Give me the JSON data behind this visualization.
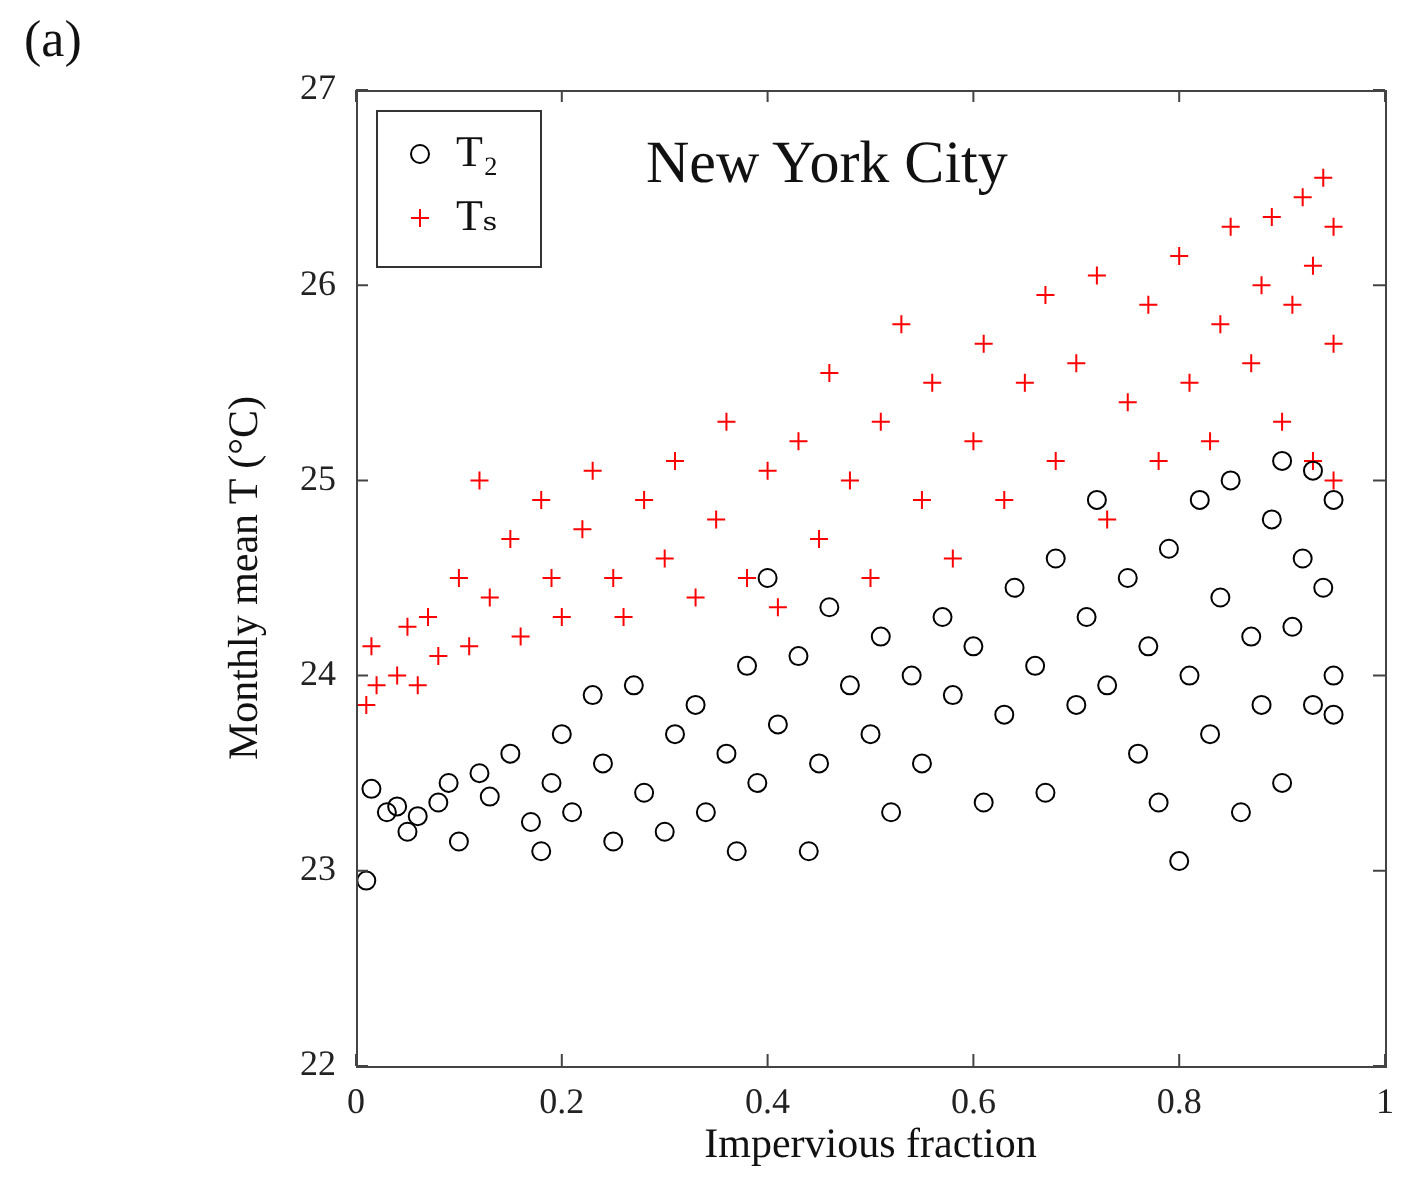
{
  "chart_data": {
    "type": "scatter",
    "title": "New York City",
    "xlabel": "Impervious fraction",
    "ylabel": "Monthly mean T (°C)",
    "annotations": [
      "(a)"
    ],
    "xlim": [
      0,
      1
    ],
    "xticks": [
      0,
      0.2,
      0.4,
      0.6,
      0.8,
      1
    ],
    "ylim": [
      22,
      27
    ],
    "yticks": [
      22,
      23,
      24,
      25,
      26,
      27
    ],
    "grid": false,
    "legend": "top left",
    "series": [
      {
        "name": "T₂",
        "color": "#000000",
        "marker": "circle",
        "x": [
          0.01,
          0.015,
          0.03,
          0.04,
          0.05,
          0.06,
          0.08,
          0.09,
          0.1,
          0.12,
          0.13,
          0.15,
          0.17,
          0.18,
          0.19,
          0.2,
          0.21,
          0.23,
          0.24,
          0.25,
          0.27,
          0.28,
          0.3,
          0.31,
          0.33,
          0.34,
          0.36,
          0.37,
          0.38,
          0.39,
          0.4,
          0.41,
          0.43,
          0.44,
          0.45,
          0.46,
          0.48,
          0.5,
          0.51,
          0.52,
          0.54,
          0.55,
          0.57,
          0.58,
          0.6,
          0.61,
          0.63,
          0.64,
          0.66,
          0.67,
          0.68,
          0.7,
          0.71,
          0.72,
          0.73,
          0.75,
          0.76,
          0.77,
          0.78,
          0.79,
          0.8,
          0.81,
          0.82,
          0.83,
          0.84,
          0.85,
          0.86,
          0.87,
          0.88,
          0.89,
          0.9,
          0.9,
          0.91,
          0.92,
          0.93,
          0.93,
          0.94,
          0.95,
          0.95,
          0.95
        ],
        "values": [
          22.95,
          23.42,
          23.3,
          23.33,
          23.2,
          23.28,
          23.35,
          23.45,
          23.15,
          23.5,
          23.38,
          23.6,
          23.25,
          23.1,
          23.45,
          23.7,
          23.3,
          23.9,
          23.55,
          23.15,
          23.95,
          23.4,
          23.2,
          23.7,
          23.85,
          23.3,
          23.6,
          23.1,
          24.05,
          23.45,
          24.5,
          23.75,
          24.1,
          23.1,
          23.55,
          24.35,
          23.95,
          23.7,
          24.2,
          23.3,
          24.0,
          23.55,
          24.3,
          23.9,
          24.15,
          23.35,
          23.8,
          24.45,
          24.05,
          23.4,
          24.6,
          23.85,
          24.3,
          24.9,
          23.95,
          24.5,
          23.6,
          24.15,
          23.35,
          24.65,
          23.05,
          24.0,
          24.9,
          23.7,
          24.4,
          25.0,
          23.3,
          24.2,
          23.85,
          24.8,
          23.45,
          25.1,
          24.25,
          24.6,
          23.85,
          25.05,
          24.45,
          24.0,
          24.9,
          23.8
        ]
      },
      {
        "name": "Tₛ",
        "color": "#ff0000",
        "marker": "cross",
        "x": [
          0.01,
          0.015,
          0.02,
          0.04,
          0.05,
          0.06,
          0.07,
          0.08,
          0.1,
          0.11,
          0.12,
          0.13,
          0.15,
          0.16,
          0.18,
          0.19,
          0.2,
          0.22,
          0.23,
          0.25,
          0.26,
          0.28,
          0.3,
          0.31,
          0.33,
          0.35,
          0.36,
          0.38,
          0.4,
          0.41,
          0.43,
          0.45,
          0.46,
          0.48,
          0.5,
          0.51,
          0.53,
          0.55,
          0.56,
          0.58,
          0.6,
          0.61,
          0.63,
          0.65,
          0.67,
          0.68,
          0.7,
          0.72,
          0.73,
          0.75,
          0.77,
          0.78,
          0.8,
          0.81,
          0.83,
          0.84,
          0.85,
          0.87,
          0.88,
          0.89,
          0.9,
          0.91,
          0.92,
          0.93,
          0.93,
          0.94,
          0.95,
          0.95,
          0.95
        ],
        "values": [
          23.85,
          24.15,
          23.95,
          24.0,
          24.25,
          23.95,
          24.3,
          24.1,
          24.5,
          24.15,
          25.0,
          24.4,
          24.7,
          24.2,
          24.9,
          24.5,
          24.3,
          24.75,
          25.05,
          24.5,
          24.3,
          24.9,
          24.6,
          25.1,
          24.4,
          24.8,
          25.3,
          24.5,
          25.05,
          24.35,
          25.2,
          24.7,
          25.55,
          25.0,
          24.5,
          25.3,
          25.8,
          24.9,
          25.5,
          24.6,
          25.2,
          25.7,
          24.9,
          25.5,
          25.95,
          25.1,
          25.6,
          26.05,
          24.8,
          25.4,
          25.9,
          25.1,
          26.15,
          25.5,
          25.2,
          25.8,
          26.3,
          25.6,
          26.0,
          26.35,
          25.3,
          25.9,
          26.45,
          25.1,
          26.1,
          26.55,
          25.7,
          26.3,
          25.0
        ]
      }
    ]
  }
}
